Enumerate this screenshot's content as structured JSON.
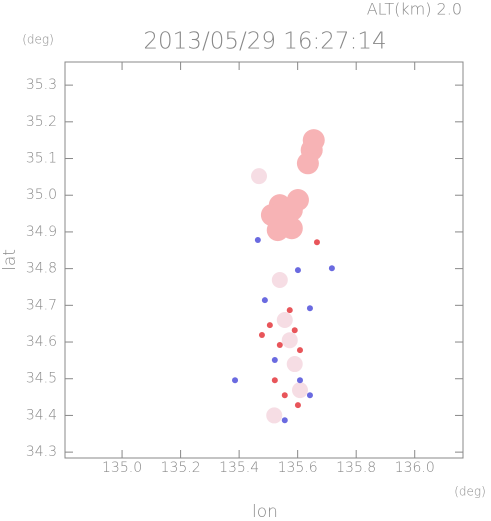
{
  "chart_data": {
    "type": "scatter",
    "title": "2013/05/29 16:27:14",
    "annotation": "ALT(km) 2.0",
    "x_label": "lon",
    "y_label": "lat",
    "x_unit": "(deg)",
    "y_unit": "(deg)",
    "xlim": [
      134.805,
      136.165
    ],
    "ylim": [
      34.284,
      35.363
    ],
    "xticks": [
      {
        "value": 135,
        "label": "135.0"
      },
      135.2,
      135.4,
      135.6,
      135.8,
      {
        "value": 136,
        "label": "136.0"
      }
    ],
    "yticks": [
      34.3,
      34.4,
      34.5,
      34.6,
      34.7,
      34.8,
      34.9,
      {
        "value": 35,
        "label": "35.0"
      },
      35.1,
      35.2,
      35.3
    ],
    "series": [
      {
        "color": "#f7b3b5",
        "marker_size": 11,
        "x": [
          135.648,
          135.635,
          135.655,
          135.539,
          135.58,
          135.512,
          135.556,
          135.601,
          135.532,
          135.58
        ],
        "y": [
          35.123,
          35.087,
          35.15,
          34.973,
          34.959,
          34.946,
          34.927,
          34.987,
          34.905,
          34.91
        ]
      },
      {
        "color": "#f6dde4",
        "marker_size": 8,
        "x": [
          135.468,
          135.556,
          135.573,
          135.608,
          135.539,
          135.52,
          135.59
        ],
        "y": [
          35.052,
          34.66,
          34.605,
          34.469,
          34.769,
          34.4,
          34.54
        ]
      },
      {
        "color": "#e8555a",
        "marker_size": 3,
        "x": [
          135.505,
          135.59,
          135.539,
          135.608,
          135.556,
          135.601,
          135.522,
          135.666,
          135.478,
          135.573
        ],
        "y": [
          34.646,
          34.632,
          34.592,
          34.578,
          34.455,
          34.428,
          34.496,
          34.872,
          34.619,
          34.687
        ]
      },
      {
        "color": "#6a6ae0",
        "marker_size": 3,
        "x": [
          135.488,
          135.642,
          135.522,
          135.608,
          135.642,
          135.601,
          135.464,
          135.386,
          135.717,
          135.556
        ],
        "y": [
          34.714,
          34.692,
          34.551,
          34.496,
          34.455,
          34.796,
          34.878,
          34.496,
          34.801,
          34.387
        ]
      }
    ]
  }
}
